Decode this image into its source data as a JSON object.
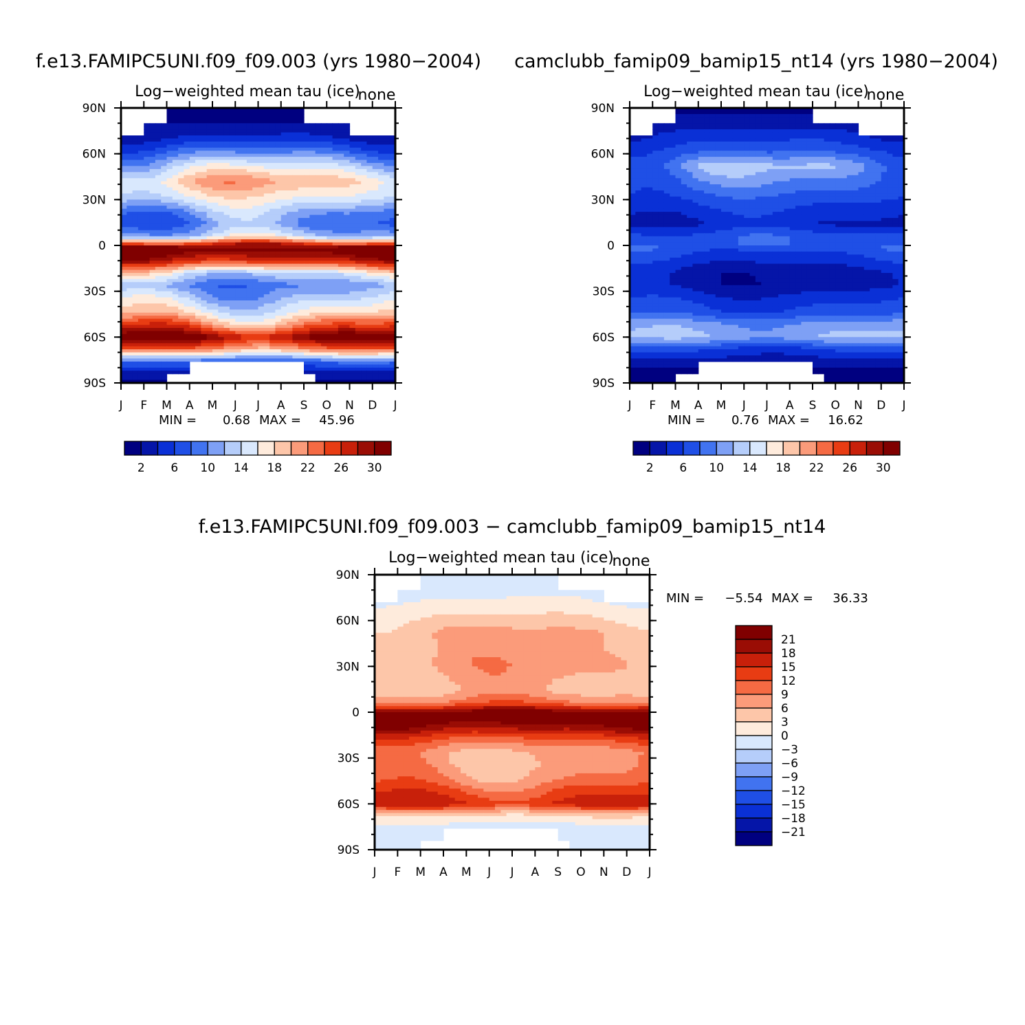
{
  "chart_data": [
    {
      "type": "heatmap",
      "title": "f.e13.FAMIPC5UNI.f09_f09.003 (yrs 1980−2004)",
      "subtitle": "Log−weighted mean tau (ice)",
      "units_label": "none",
      "x_ticks": [
        "J",
        "F",
        "M",
        "A",
        "M",
        "J",
        "J",
        "A",
        "S",
        "O",
        "N",
        "D",
        "J"
      ],
      "y_ticks": [
        "90N",
        "60N",
        "30N",
        "0",
        "30S",
        "60S",
        "90S"
      ],
      "min_label": "MIN =",
      "min_value": "0.68",
      "max_label": "MAX =",
      "max_value": "45.96",
      "zlim": [
        0.68,
        45.96
      ],
      "colorbar": {
        "orientation": "horizontal",
        "levels": [
          2,
          4,
          6,
          8,
          10,
          12,
          14,
          16,
          18,
          20,
          22,
          24,
          26,
          28,
          30
        ],
        "labels": [
          "2",
          "6",
          "10",
          "14",
          "18",
          "22",
          "26",
          "30"
        ],
        "colors": [
          "#000080",
          "#0515a8",
          "#0a30d6",
          "#1f4fe6",
          "#4173f0",
          "#7ea0f5",
          "#b5cdfa",
          "#d9e8fd",
          "#feebdc",
          "#fdc6a9",
          "#fb9b7a",
          "#f56a43",
          "#e83c13",
          "#c8200a",
          "#9a0d05",
          "#800000"
        ]
      },
      "profile": {
        "lat": [
          90,
          80,
          70,
          62,
          52,
          42,
          32,
          22,
          14,
          6,
          -2,
          -10,
          -18,
          -26,
          -34,
          -44,
          -52,
          -60,
          -68,
          -76,
          -84,
          -90
        ],
        "values": [
          1,
          2,
          4,
          8,
          14,
          19,
          16,
          11,
          9,
          13,
          33,
          27,
          15,
          10,
          13,
          17,
          23,
          31,
          22,
          8,
          3,
          1
        ],
        "seasonal_amp": [
          0,
          0,
          1,
          2,
          3,
          3,
          2,
          3,
          3,
          3,
          2,
          2,
          3,
          2,
          3,
          3,
          4,
          3,
          2,
          1,
          0,
          0
        ]
      }
    },
    {
      "type": "heatmap",
      "title": "camclubb_famip09_bamip15_nt14 (yrs 1980−2004)",
      "subtitle": "Log−weighted mean tau (ice)",
      "units_label": "none",
      "x_ticks": [
        "J",
        "F",
        "M",
        "A",
        "M",
        "J",
        "J",
        "A",
        "S",
        "O",
        "N",
        "D",
        "J"
      ],
      "y_ticks": [
        "90N",
        "60N",
        "30N",
        "0",
        "30S",
        "60S",
        "90S"
      ],
      "min_label": "MIN =",
      "min_value": "0.76",
      "max_label": "MAX =",
      "max_value": "16.62",
      "zlim": [
        0.76,
        16.62
      ],
      "colorbar": {
        "orientation": "horizontal",
        "levels": [
          2,
          4,
          6,
          8,
          10,
          12,
          14,
          16,
          18,
          20,
          22,
          24,
          26,
          28,
          30
        ],
        "labels": [
          "2",
          "6",
          "10",
          "14",
          "18",
          "22",
          "26",
          "30"
        ],
        "colors": [
          "#000080",
          "#0515a8",
          "#0a30d6",
          "#1f4fe6",
          "#4173f0",
          "#7ea0f5",
          "#b5cdfa",
          "#d9e8fd",
          "#feebdc",
          "#fdc6a9",
          "#fb9b7a",
          "#f56a43",
          "#e83c13",
          "#c8200a",
          "#9a0d05",
          "#800000"
        ]
      },
      "profile": {
        "lat": [
          90,
          80,
          70,
          62,
          52,
          42,
          32,
          22,
          14,
          6,
          -2,
          -10,
          -18,
          -26,
          -34,
          -44,
          -52,
          -60,
          -68,
          -76,
          -84,
          -90
        ],
        "values": [
          1,
          3,
          5,
          7,
          11,
          9,
          7,
          5,
          4,
          7,
          7,
          5,
          3,
          3,
          5,
          7,
          11,
          12,
          6,
          3,
          1,
          1
        ],
        "seasonal_amp": [
          0,
          0,
          1,
          1,
          3,
          2,
          1,
          1,
          1,
          1,
          1,
          1,
          1,
          1,
          1,
          1,
          1,
          1,
          1,
          0,
          0,
          0
        ]
      }
    },
    {
      "type": "heatmap",
      "title": "f.e13.FAMIPC5UNI.f09_f09.003 − camclubb_famip09_bamip15_nt14",
      "subtitle": "Log−weighted mean tau (ice)",
      "units_label": "none",
      "x_ticks": [
        "J",
        "F",
        "M",
        "A",
        "M",
        "J",
        "J",
        "A",
        "S",
        "O",
        "N",
        "D",
        "J"
      ],
      "y_ticks": [
        "90N",
        "60N",
        "30N",
        "0",
        "30S",
        "60S",
        "90S"
      ],
      "min_label": "MIN =",
      "min_value": "−5.54",
      "max_label": "MAX =",
      "max_value": "36.33",
      "zlim": [
        -5.54,
        36.33
      ],
      "colorbar": {
        "orientation": "vertical",
        "levels": [
          -21,
          -18,
          -15,
          -12,
          -9,
          -6,
          -3,
          0,
          3,
          6,
          9,
          12,
          15,
          18,
          21
        ],
        "labels": [
          "−21",
          "−18",
          "−15",
          "−12",
          "−9",
          "−6",
          "−3",
          "0",
          "3",
          "6",
          "9",
          "12",
          "15",
          "18",
          "21"
        ],
        "colors": [
          "#000080",
          "#0515a8",
          "#0a30d6",
          "#1f4fe6",
          "#4173f0",
          "#7ea0f5",
          "#b5cdfa",
          "#d9e8fd",
          "#feebdc",
          "#fdc6a9",
          "#fb9b7a",
          "#f56a43",
          "#e83c13",
          "#c8200a",
          "#9a0d05",
          "#800000"
        ]
      },
      "profile": {
        "lat": [
          90,
          80,
          70,
          62,
          52,
          42,
          32,
          22,
          14,
          6,
          -2,
          -10,
          -18,
          -26,
          -34,
          -44,
          -52,
          -60,
          -68,
          -76,
          -84,
          -90
        ],
        "values": [
          -2,
          -2,
          1,
          3,
          6,
          6,
          7,
          6,
          5,
          10,
          26,
          20,
          12,
          7,
          7,
          9,
          13,
          16,
          3,
          -2,
          -2,
          -1
        ],
        "seasonal_amp": [
          0,
          1,
          1,
          1,
          2,
          2,
          2,
          2,
          2,
          2,
          2,
          2,
          2,
          2,
          3,
          3,
          3,
          2,
          1,
          0,
          0,
          0
        ]
      }
    }
  ]
}
